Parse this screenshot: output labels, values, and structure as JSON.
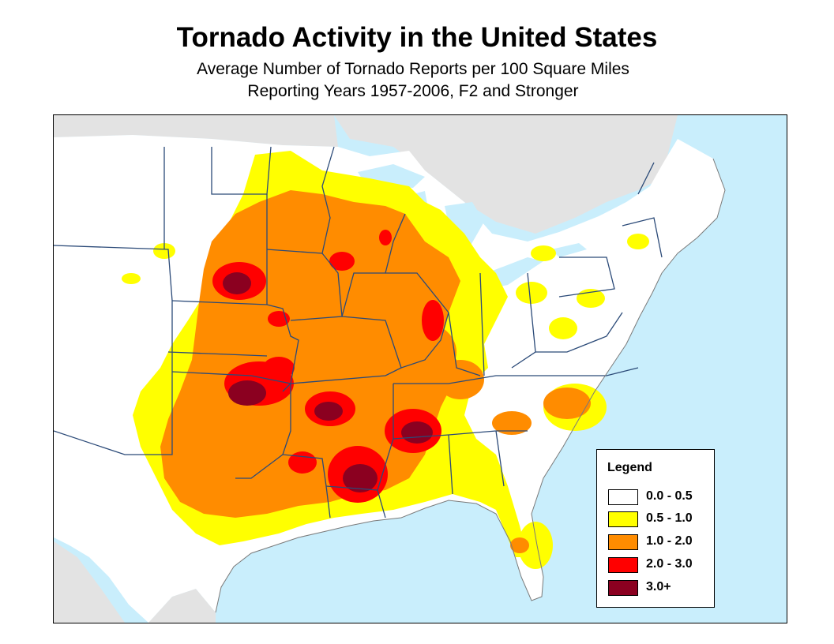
{
  "title": "Tornado Activity in the United States",
  "subtitle_1": "Average Number of Tornado Reports per 100 Square Miles",
  "subtitle_2": "Reporting Years 1957-2006, F2 and Stronger",
  "colors": {
    "land": "#ffffff",
    "ocean": "#c9eefc",
    "foreign_land": "#e3e3e3",
    "border": "#2b4a78"
  },
  "legend": {
    "title": "Legend",
    "items": [
      {
        "label": "0.0 - 0.5",
        "color": "#ffffff"
      },
      {
        "label": "0.5 - 1.0",
        "color": "#ffff00"
      },
      {
        "label": "1.0 - 2.0",
        "color": "#ff8c00"
      },
      {
        "label": "2.0 - 3.0",
        "color": "#ff0000"
      },
      {
        "label": "3.0+",
        "color": "#8b0020"
      }
    ]
  }
}
